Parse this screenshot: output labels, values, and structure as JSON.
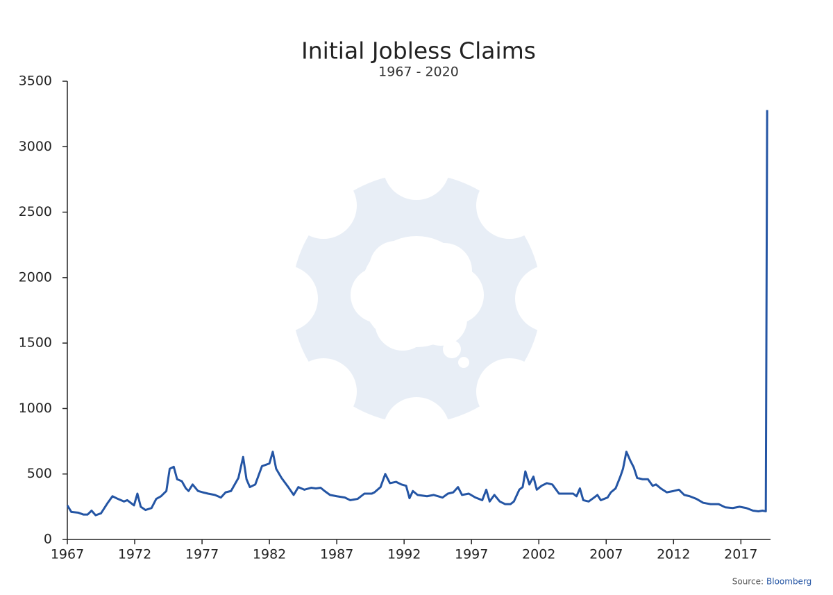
{
  "chart_data": {
    "type": "line",
    "title": "Initial Jobless Claims",
    "subtitle": "1967 - 2020",
    "source_label": "Source:",
    "source_name": "Bloomberg",
    "x": [
      1967.0,
      1967.3,
      1967.8,
      1968.2,
      1968.5,
      1968.8,
      1969.1,
      1969.5,
      1970.0,
      1970.35,
      1970.75,
      1971.2,
      1971.45,
      1971.95,
      1972.2,
      1972.45,
      1972.8,
      1973.25,
      1973.6,
      1973.95,
      1974.35,
      1974.6,
      1974.9,
      1975.15,
      1975.5,
      1975.8,
      1976.0,
      1976.3,
      1976.7,
      1977.05,
      1977.45,
      1977.95,
      1978.4,
      1978.75,
      1979.15,
      1979.7,
      1980.05,
      1980.3,
      1980.55,
      1980.95,
      1981.45,
      1982.0,
      1982.25,
      1982.5,
      1982.9,
      1983.4,
      1983.8,
      1984.15,
      1984.6,
      1985.1,
      1985.45,
      1985.8,
      1986.1,
      1986.5,
      1987.0,
      1987.6,
      1988.0,
      1988.55,
      1989.05,
      1989.6,
      1989.8,
      1990.25,
      1990.6,
      1990.95,
      1991.4,
      1991.8,
      1992.15,
      1992.4,
      1992.65,
      1993.0,
      1993.7,
      1994.2,
      1994.85,
      1995.25,
      1995.65,
      1996.0,
      1996.3,
      1996.8,
      1997.3,
      1997.8,
      1998.1,
      1998.35,
      1998.7,
      1999.1,
      1999.5,
      1999.9,
      2000.15,
      2000.55,
      2000.8,
      2001.0,
      2001.3,
      2001.6,
      2001.85,
      2002.2,
      2002.6,
      2003.0,
      2003.5,
      2004.0,
      2004.55,
      2004.8,
      2005.05,
      2005.3,
      2005.7,
      2006.1,
      2006.35,
      2006.6,
      2007.1,
      2007.35,
      2007.7,
      2008.05,
      2008.25,
      2008.5,
      2008.8,
      2009.05,
      2009.3,
      2009.7,
      2010.1,
      2010.45,
      2010.7,
      2011.05,
      2011.5,
      2012.0,
      2012.4,
      2012.8,
      2013.2,
      2013.7,
      2014.2,
      2014.75,
      2015.35,
      2015.85,
      2016.4,
      2016.9,
      2017.4,
      2017.9,
      2018.3,
      2018.6,
      2018.85,
      2018.95
    ],
    "series": [
      {
        "name": "Initial Jobless Claims",
        "color": "#2455a4",
        "values": [
          260,
          210,
          205,
          190,
          190,
          220,
          185,
          200,
          280,
          330,
          310,
          290,
          300,
          260,
          350,
          250,
          225,
          240,
          310,
          330,
          370,
          540,
          555,
          460,
          445,
          390,
          370,
          420,
          370,
          360,
          350,
          340,
          320,
          360,
          370,
          470,
          630,
          460,
          400,
          420,
          560,
          580,
          670,
          540,
          470,
          400,
          340,
          400,
          380,
          395,
          390,
          395,
          370,
          340,
          330,
          320,
          300,
          310,
          350,
          350,
          360,
          400,
          500,
          430,
          440,
          420,
          410,
          315,
          370,
          340,
          330,
          340,
          320,
          350,
          360,
          400,
          340,
          350,
          320,
          300,
          380,
          290,
          340,
          290,
          270,
          270,
          290,
          380,
          400,
          520,
          420,
          480,
          380,
          410,
          430,
          420,
          350,
          350,
          350,
          330,
          390,
          300,
          290,
          320,
          340,
          300,
          320,
          360,
          390,
          480,
          540,
          670,
          600,
          550,
          470,
          460,
          460,
          410,
          420,
          390,
          360,
          370,
          380,
          340,
          330,
          310,
          280,
          270,
          270,
          245,
          240,
          250,
          240,
          220,
          215,
          220,
          215,
          3280
        ]
      }
    ],
    "xlim": [
      1967,
      2019.2
    ],
    "ylim": [
      0,
      3500
    ],
    "xticks": [
      1967,
      1972,
      1977,
      1982,
      1987,
      1992,
      1997,
      2002,
      2007,
      2012,
      2017
    ],
    "yticks": [
      0,
      500,
      1000,
      1500,
      2000,
      2500,
      3000,
      3500
    ]
  }
}
